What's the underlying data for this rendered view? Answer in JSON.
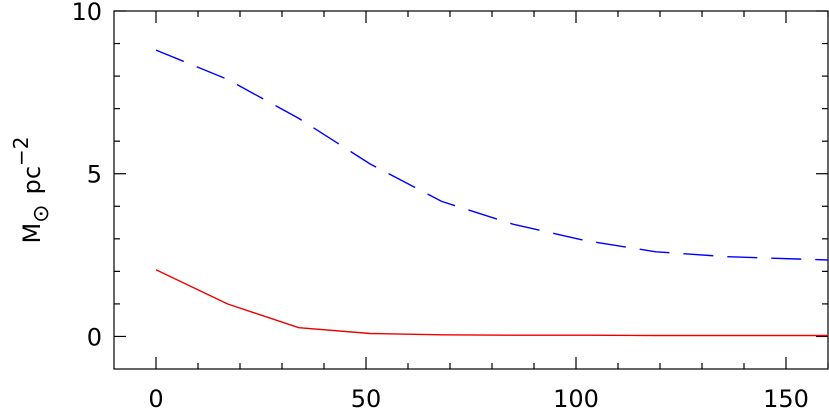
{
  "chart_data": {
    "type": "line",
    "title": "",
    "xlabel": "",
    "ylabel": "M⊙ pc⁻²",
    "ylabel_parts": {
      "main": "M",
      "sub": "⊙",
      "unit": "pc",
      "sup": "−2"
    },
    "xlim": [
      -10,
      160
    ],
    "ylim": [
      -1,
      10
    ],
    "x_ticks": [
      0,
      50,
      100,
      150
    ],
    "x_tick_labels": [
      "0",
      "50",
      "100",
      "150"
    ],
    "y_ticks": [
      0,
      5,
      10
    ],
    "y_tick_labels": [
      "0",
      "5",
      "10"
    ],
    "grid": false,
    "legend": "none",
    "series": [
      {
        "color": "#0000ff",
        "style": "dashed",
        "x": [
          0,
          17,
          34,
          51,
          68,
          85,
          102,
          119,
          136,
          160
        ],
        "y": [
          8.8,
          7.9,
          6.7,
          5.3,
          4.15,
          3.45,
          2.95,
          2.6,
          2.45,
          2.35
        ]
      },
      {
        "color": "#ee0000",
        "style": "solid",
        "x": [
          0,
          17,
          34,
          51,
          68,
          85,
          102,
          119,
          136,
          160
        ],
        "y": [
          2.05,
          1.0,
          0.27,
          0.09,
          0.05,
          0.04,
          0.04,
          0.03,
          0.03,
          0.03
        ]
      }
    ]
  }
}
